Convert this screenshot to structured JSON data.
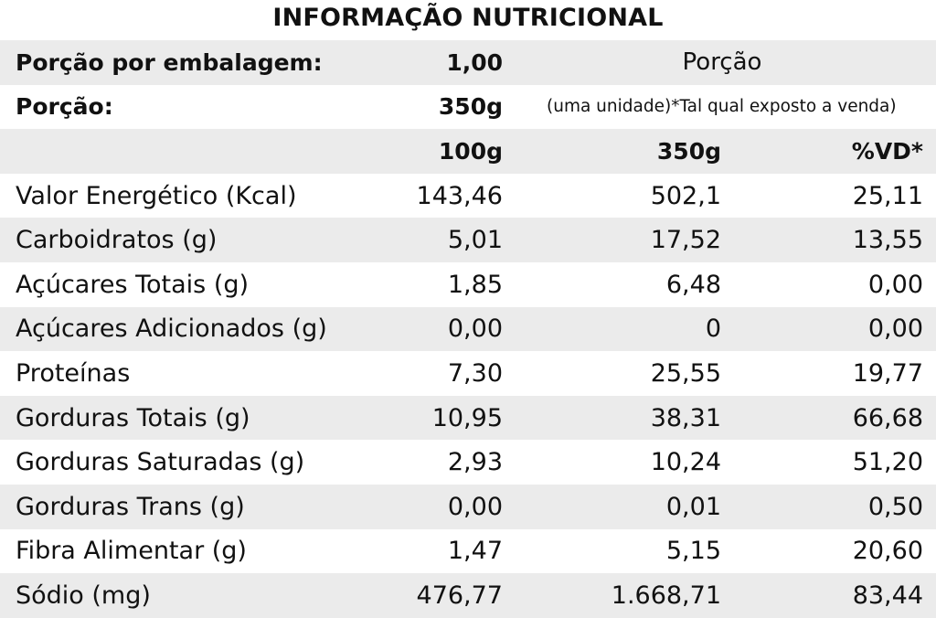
{
  "title": "INFORMAÇÃO NUTRICIONAL",
  "header": {
    "porcoes_label": "Porção por embalagem:",
    "porcoes_value": "1,00",
    "porcao_heading": "Porção",
    "porcao_label": "Porção:",
    "porcao_value": "350g",
    "porcao_note": "(uma unidade)*Tal qual exposto a venda)",
    "col_100g": "100g",
    "col_350g": "350g",
    "col_vd": "%VD*"
  },
  "rows": [
    {
      "name": "Valor Energético (Kcal)",
      "v100": "143,46",
      "v350": "502,1",
      "vd": "25,11"
    },
    {
      "name": "Carboidratos (g)",
      "v100": "5,01",
      "v350": "17,52",
      "vd": "13,55"
    },
    {
      "name": "Açúcares Totais (g)",
      "v100": "1,85",
      "v350": "6,48",
      "vd": "0,00"
    },
    {
      "name": "Açúcares Adicionados (g)",
      "v100": "0,00",
      "v350": "0",
      "vd": "0,00"
    },
    {
      "name": "Proteínas",
      "v100": "7,30",
      "v350": "25,55",
      "vd": "19,77"
    },
    {
      "name": "Gorduras Totais (g)",
      "v100": "10,95",
      "v350": "38,31",
      "vd": "66,68"
    },
    {
      "name": "Gorduras Saturadas (g)",
      "v100": "2,93",
      "v350": "10,24",
      "vd": "51,20"
    },
    {
      "name": "Gorduras Trans (g)",
      "v100": "0,00",
      "v350": "0,01",
      "vd": "0,50"
    },
    {
      "name": "Fibra Alimentar (g)",
      "v100": "1,47",
      "v350": "5,15",
      "vd": "20,60"
    },
    {
      "name": "Sódio (mg)",
      "v100": "476,77",
      "v350": "1.668,71",
      "vd": "83,44"
    }
  ]
}
